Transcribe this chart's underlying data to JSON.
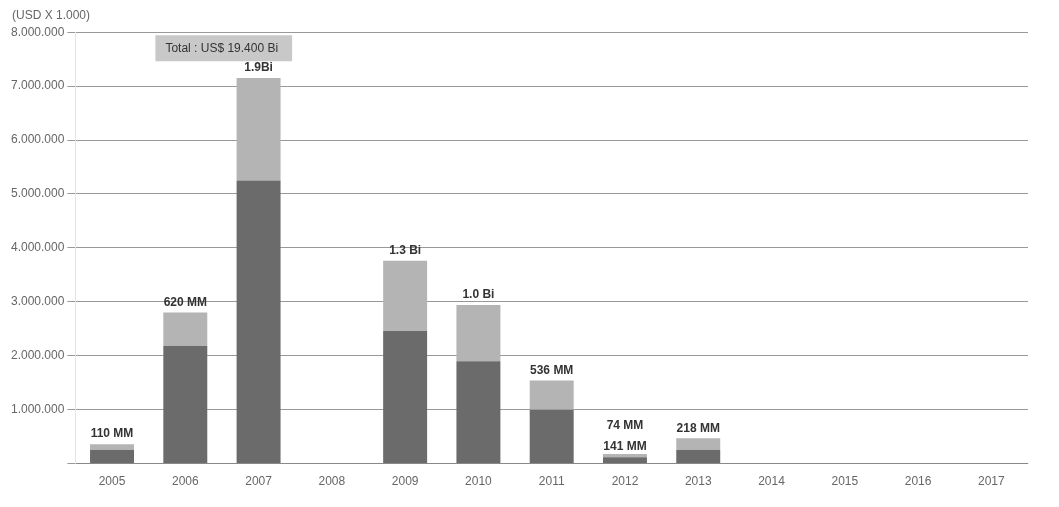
{
  "chart_data": {
    "type": "bar",
    "stacked": true,
    "ylabel": "(USD X 1.000)",
    "categories": [
      "2005",
      "2006",
      "2007",
      "2008",
      "2009",
      "2010",
      "2011",
      "2012",
      "2013",
      "2014",
      "2015",
      "2016",
      "2017"
    ],
    "series": [
      {
        "color": "#6b6b6b",
        "values": [
          250000,
          2180000,
          5250000,
          null,
          2460000,
          1900000,
          1000000,
          120000,
          250000,
          null,
          null,
          null,
          null
        ]
      },
      {
        "color": "#b4b4b4",
        "values": [
          110000,
          620000,
          1900000,
          null,
          1300000,
          1040000,
          540000,
          60000,
          220000,
          null,
          null,
          null,
          null
        ]
      }
    ],
    "ylim": [
      0,
      8000000
    ],
    "yticks": [
      {
        "value": 0,
        "label": null
      },
      {
        "value": 1000000,
        "label": "1.000.000"
      },
      {
        "value": 2000000,
        "label": "2.000.000"
      },
      {
        "value": 3000000,
        "label": "3.000.000"
      },
      {
        "value": 4000000,
        "label": "4.000.000"
      },
      {
        "value": 5000000,
        "label": "5.000.000"
      },
      {
        "value": 6000000,
        "label": "6.000.000"
      },
      {
        "value": 7000000,
        "label": "7.000.000"
      },
      {
        "value": 8000000,
        "label": "8.000.000"
      }
    ],
    "grid": "y",
    "legend": false,
    "annotations": [
      "Total : US$ 19.400 Bi",
      {
        "text": "110 MM",
        "x": "2005",
        "y": 360000
      },
      {
        "text": "620 MM",
        "x": "2006",
        "y": 2800000
      },
      {
        "text": "1.9Bi",
        "x": "2007",
        "y": 7150000
      },
      {
        "text": "1.3 Bi",
        "x": "2009",
        "y": 3760000
      },
      {
        "text": "1.0 Bi",
        "x": "2010",
        "y": 2940000
      },
      {
        "text": "536 MM",
        "x": "2011",
        "y": 1540000
      },
      {
        "text": "141 MM",
        "x": "2012",
        "y": 120000
      },
      {
        "text": "74 MM",
        "x": "2012",
        "y": 180000
      },
      {
        "text": "218 MM",
        "x": "2013",
        "y": 470000
      }
    ]
  }
}
